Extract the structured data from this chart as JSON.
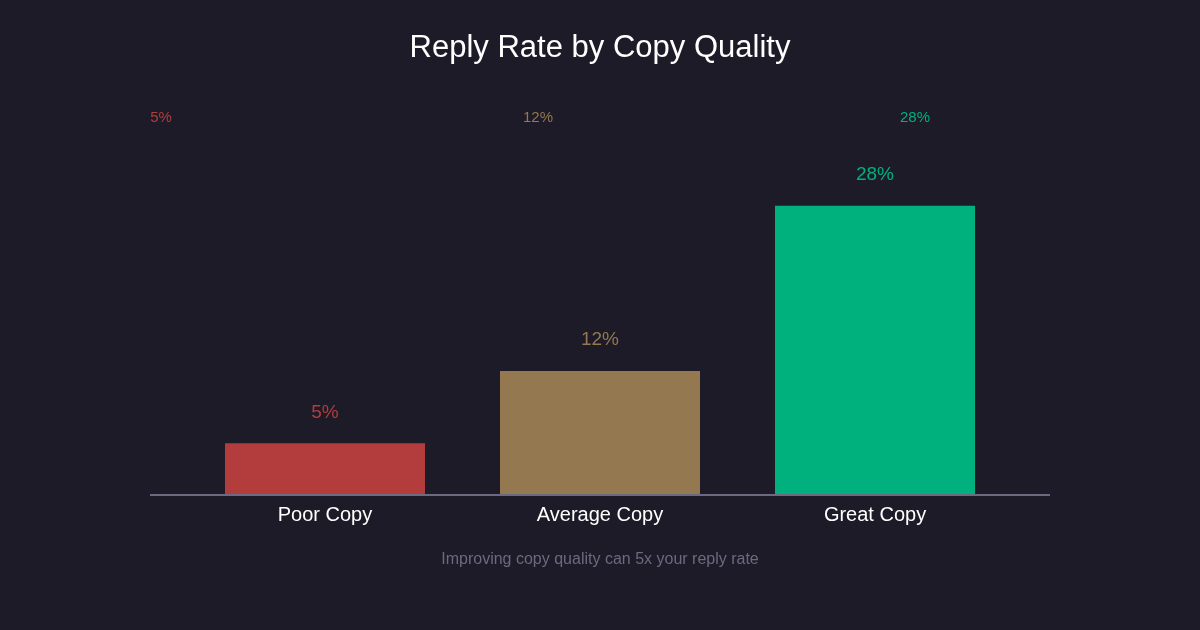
{
  "chart_data": {
    "type": "bar",
    "title": "Reply Rate by Copy Quality",
    "categories": [
      "Poor Copy",
      "Average Copy",
      "Great Copy"
    ],
    "values": [
      5,
      12,
      28
    ],
    "colors": [
      "#b33c3c",
      "#94784f",
      "#00b07d"
    ],
    "data_labels": true,
    "value_labels": [
      "5%",
      "12%",
      "28%"
    ],
    "annotations": [
      "5%",
      "12%",
      "28%",
      "Improving copy quality can 5x your reply rate"
    ]
  }
}
